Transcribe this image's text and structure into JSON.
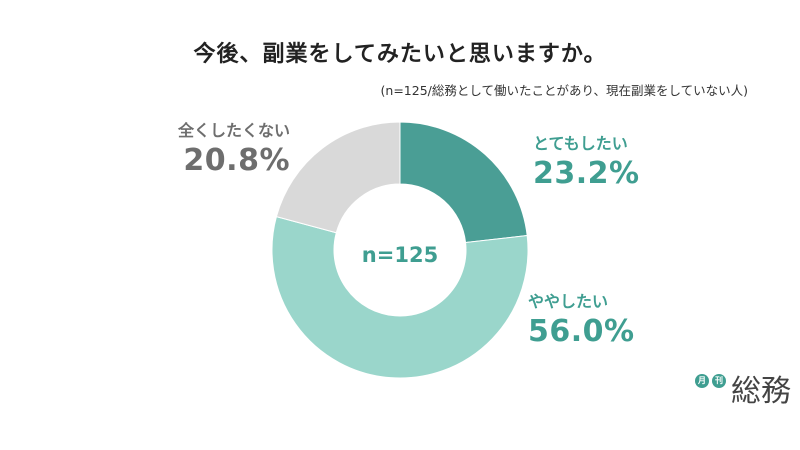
{
  "title": "今後、副業をしてみたいと思いますか。",
  "subtitle": "(n=125/総務として働いたことがあり、現在副業をしていない人)",
  "colors": {
    "very_much": "#4a9e95",
    "somewhat": "#9ad6cb",
    "not_at_all": "#d9d9d9",
    "label_teal": "#3f9e91",
    "label_gray": "#6e6e6e"
  },
  "chart_data": {
    "type": "pie",
    "variant": "donut",
    "center_label": "n=125",
    "slices": [
      {
        "label": "とてもしたい",
        "value": 23.2,
        "display": "23.2%",
        "color": "#4a9e95"
      },
      {
        "label": "ややしたい",
        "value": 56.0,
        "display": "56.0%",
        "color": "#9ad6cb"
      },
      {
        "label": "全くしたくない",
        "value": 20.8,
        "display": "20.8%",
        "color": "#d9d9d9"
      }
    ]
  },
  "logo": {
    "badge_1": "月",
    "badge_2": "刊",
    "text": "総務"
  }
}
